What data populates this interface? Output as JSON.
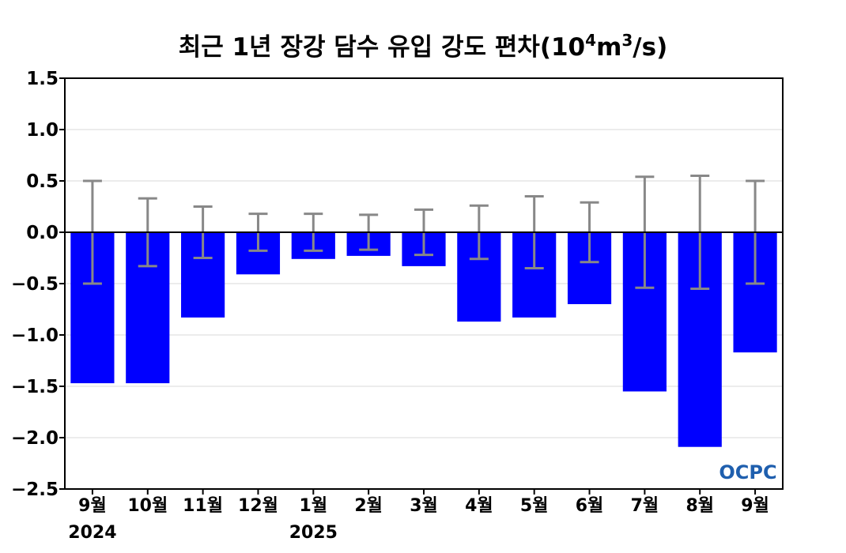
{
  "chart_data": {
    "type": "bar",
    "title_main": "최근 1년 장강 담수 유입 강도 편차(10",
    "title_sup1": "4",
    "title_mid": "m",
    "title_sup2": "3",
    "title_end": "/s)",
    "categories": [
      "9월",
      "10월",
      "11월",
      "12월",
      "1월",
      "2월",
      "3월",
      "4월",
      "5월",
      "6월",
      "7월",
      "8월",
      "9월"
    ],
    "year_labels": [
      {
        "text": "2024",
        "category_index": 0
      },
      {
        "text": "2025",
        "category_index": 4
      }
    ],
    "values": [
      -1.47,
      -1.47,
      -0.83,
      -0.41,
      -0.26,
      -0.23,
      -0.33,
      -0.87,
      -0.83,
      -0.7,
      -1.55,
      -2.09,
      -1.17
    ],
    "error_bars": [
      0.5,
      0.33,
      0.25,
      0.18,
      0.18,
      0.17,
      0.22,
      0.26,
      0.35,
      0.29,
      0.54,
      0.55,
      0.5
    ],
    "ylim": [
      -2.5,
      1.5
    ],
    "yticks": [
      1.5,
      1.0,
      0.5,
      0.0,
      -0.5,
      -1.0,
      -1.5,
      -2.0,
      -2.5
    ],
    "ytick_labels": [
      "1.5",
      "1.0",
      "0.5",
      "0.0",
      "−0.5",
      "−1.0",
      "−1.5",
      "−2.0",
      "−2.5"
    ],
    "grid": true,
    "bar_color": "#0000ff",
    "error_color": "#888888",
    "logo_text": "OCPC"
  }
}
